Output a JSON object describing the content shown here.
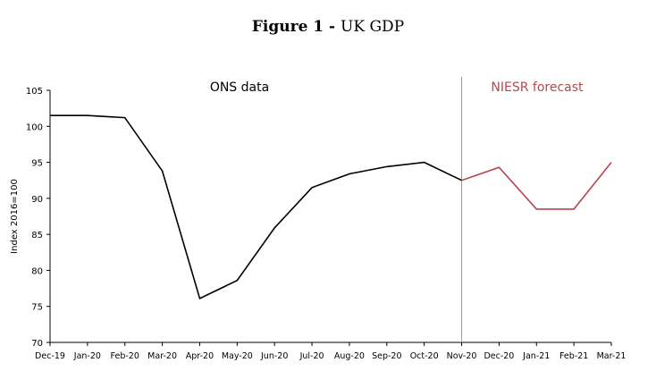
{
  "figure": {
    "number_label": "Figure 1",
    "separator": " - ",
    "title": "UK GDP"
  },
  "colors": {
    "actual": "#000000",
    "forecast": "#b5474f",
    "axis": "#000000",
    "divider": "#999999"
  },
  "chart_data": {
    "type": "line",
    "title": "UK GDP",
    "xlabel": "",
    "ylabel": "Index 2016=100",
    "ylim": [
      70,
      105
    ],
    "yticks": [
      70,
      75,
      80,
      85,
      90,
      95,
      100,
      105
    ],
    "grid": false,
    "categories": [
      "Dec-19",
      "Jan-20",
      "Feb-20",
      "Mar-20",
      "Apr-20",
      "May-20",
      "Jun-20",
      "Jul-20",
      "Aug-20",
      "Sep-20",
      "Oct-20",
      "Nov-20",
      "Dec-20",
      "Jan-21",
      "Feb-21",
      "Mar-21"
    ],
    "series": [
      {
        "name": "ONS data",
        "color": "#000000",
        "x": [
          "Dec-19",
          "Jan-20",
          "Feb-20",
          "Mar-20",
          "Apr-20",
          "May-20",
          "Jun-20",
          "Jul-20",
          "Aug-20",
          "Sep-20",
          "Oct-20",
          "Nov-20"
        ],
        "values": [
          101.5,
          101.5,
          101.2,
          93.8,
          76.1,
          78.6,
          85.9,
          91.5,
          93.4,
          94.4,
          95.0,
          92.5
        ]
      },
      {
        "name": "NIESR forecast",
        "color": "#b5474f",
        "x": [
          "Nov-20",
          "Dec-20",
          "Jan-21",
          "Feb-21",
          "Mar-21"
        ],
        "values": [
          92.5,
          94.3,
          88.5,
          88.5,
          95.0
        ]
      }
    ],
    "annotations": [
      {
        "text": "ONS data",
        "series": "ONS data"
      },
      {
        "text": "NIESR forecast",
        "series": "NIESR forecast"
      }
    ],
    "divider_at": "Nov-20"
  }
}
